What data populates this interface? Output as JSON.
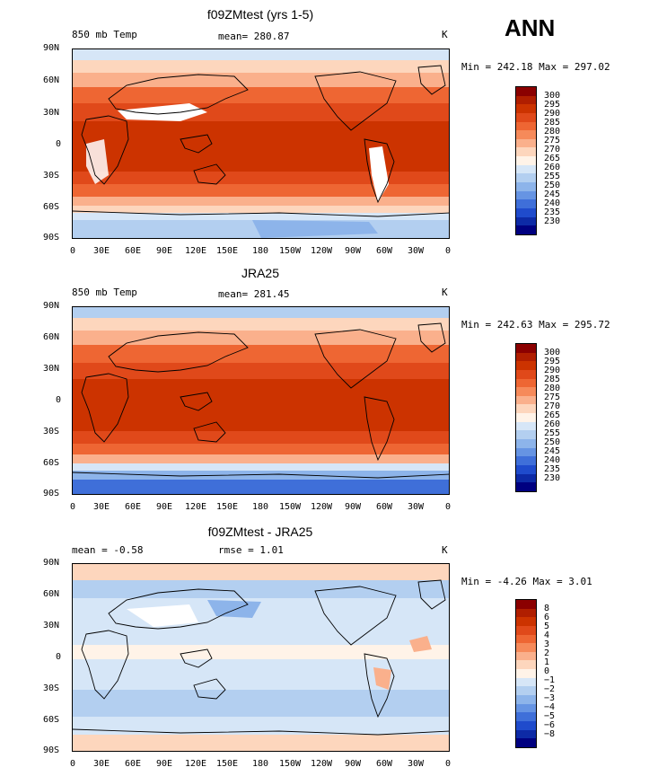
{
  "season": "ANN",
  "panels": [
    {
      "title": "f09ZMtest (yrs 1-5)",
      "left_label": "850 mb Temp",
      "center_label": "mean= 280.87",
      "right_label": "K",
      "minmax": "Min = 242.18 Max = 297.02",
      "colorbar": {
        "labels": [
          "300",
          "295",
          "290",
          "285",
          "280",
          "275",
          "270",
          "265",
          "260",
          "255",
          "250",
          "245",
          "240",
          "235",
          "230"
        ],
        "colors": [
          "#8b0000",
          "#b01e00",
          "#cc3300",
          "#e0491a",
          "#ee6633",
          "#f68a5a",
          "#fab08c",
          "#fdd6bd",
          "#fff3e8",
          "#d6e6f7",
          "#b3cff0",
          "#8db4ea",
          "#6694e3",
          "#3f6fd9",
          "#1f4bcc",
          "#0d2aa6",
          "#000080"
        ]
      },
      "lat_labels": [
        "90N",
        "60N",
        "30N",
        "0",
        "30S",
        "60S",
        "90S"
      ],
      "lon_labels": [
        "0",
        "30E",
        "60E",
        "90E",
        "120E",
        "150E",
        "180",
        "150W",
        "120W",
        "90W",
        "60W",
        "30W",
        "0"
      ]
    },
    {
      "title": "JRA25",
      "left_label": "850 mb Temp",
      "center_label": "mean= 281.45",
      "right_label": "K",
      "minmax": "Min = 242.63 Max = 295.72",
      "colorbar": {
        "labels": [
          "300",
          "295",
          "290",
          "285",
          "280",
          "275",
          "270",
          "265",
          "260",
          "255",
          "250",
          "245",
          "240",
          "235",
          "230"
        ],
        "colors": [
          "#8b0000",
          "#b01e00",
          "#cc3300",
          "#e0491a",
          "#ee6633",
          "#f68a5a",
          "#fab08c",
          "#fdd6bd",
          "#fff3e8",
          "#d6e6f7",
          "#b3cff0",
          "#8db4ea",
          "#6694e3",
          "#3f6fd9",
          "#1f4bcc",
          "#0d2aa6",
          "#000080"
        ]
      },
      "lat_labels": [
        "90N",
        "60N",
        "30N",
        "0",
        "30S",
        "60S",
        "90S"
      ],
      "lon_labels": [
        "0",
        "30E",
        "60E",
        "90E",
        "120E",
        "150E",
        "180",
        "150W",
        "120W",
        "90W",
        "60W",
        "30W",
        "0"
      ]
    },
    {
      "title": "f09ZMtest - JRA25",
      "left_label": "mean = -0.58",
      "center_label": "rmse = 1.01",
      "right_label": "K",
      "minmax": "Min = -4.26 Max = 3.01",
      "colorbar": {
        "labels": [
          "8",
          "6",
          "5",
          "4",
          "3",
          "2",
          "1",
          "0",
          "−1",
          "−2",
          "−3",
          "−4",
          "−5",
          "−6",
          "−8"
        ],
        "colors": [
          "#8b0000",
          "#b01e00",
          "#cc3300",
          "#e0491a",
          "#ee6633",
          "#f68a5a",
          "#fab08c",
          "#fdd6bd",
          "#fff3e8",
          "#d6e6f7",
          "#b3cff0",
          "#8db4ea",
          "#6694e3",
          "#3f6fd9",
          "#1f4bcc",
          "#0d2aa6",
          "#000080"
        ]
      },
      "lat_labels": [
        "90N",
        "60N",
        "30N",
        "0",
        "30S",
        "60S",
        "90S"
      ],
      "lon_labels": [
        "0",
        "30E",
        "60E",
        "90E",
        "120E",
        "150E",
        "180",
        "150W",
        "120W",
        "90W",
        "60W",
        "30W",
        "0"
      ]
    }
  ]
}
